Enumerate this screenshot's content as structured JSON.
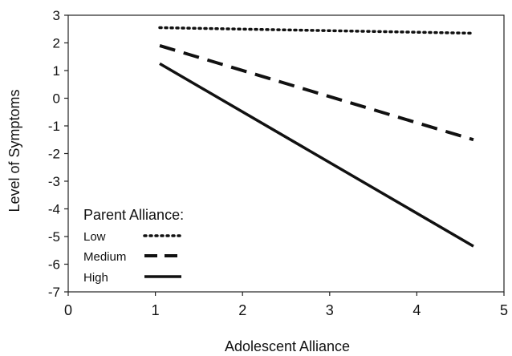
{
  "chart_data": {
    "type": "line",
    "title": "",
    "xlabel": "Adolescent Alliance",
    "ylabel": "Level of Symptoms",
    "xlim": [
      0,
      5
    ],
    "ylim": [
      -7,
      3
    ],
    "x_ticks": [
      "0",
      "1",
      "2",
      "3",
      "4",
      "5"
    ],
    "y_ticks": [
      "3",
      "2",
      "1",
      "0",
      "-1",
      "-2",
      "-3",
      "-4",
      "-5",
      "-6",
      "-7"
    ],
    "grid": false,
    "legend_title": "Parent Alliance:",
    "legend_position": "bottom-left",
    "series": [
      {
        "name": "Low",
        "style": "dotted",
        "x": [
          1.05,
          4.65
        ],
        "y": [
          2.55,
          2.35
        ]
      },
      {
        "name": "Medium",
        "style": "dashed",
        "x": [
          1.05,
          4.65
        ],
        "y": [
          1.9,
          -1.5
        ]
      },
      {
        "name": "High",
        "style": "solid",
        "x": [
          1.05,
          4.65
        ],
        "y": [
          1.25,
          -5.35
        ]
      }
    ],
    "color": "#111111"
  }
}
